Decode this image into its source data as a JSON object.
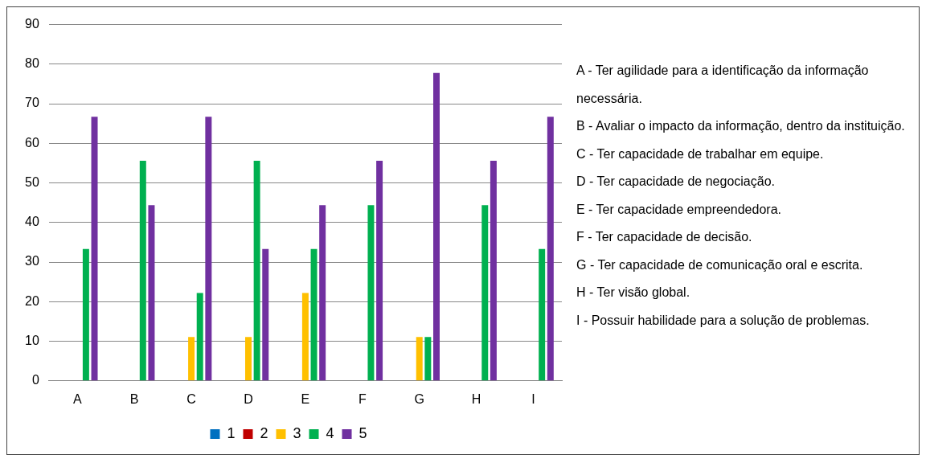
{
  "chart_data": {
    "type": "bar",
    "categories": [
      "A",
      "B",
      "C",
      "D",
      "E",
      "F",
      "G",
      "H",
      "I"
    ],
    "series": [
      {
        "name": "1",
        "color": "#0070c0",
        "values": [
          0,
          0,
          0,
          0,
          0,
          0,
          0,
          0,
          0
        ]
      },
      {
        "name": "2",
        "color": "#c00000",
        "values": [
          0,
          0,
          0,
          0,
          0,
          0,
          0,
          0,
          0
        ]
      },
      {
        "name": "3",
        "color": "#ffc000",
        "values": [
          0,
          0,
          11.1,
          11.1,
          22.2,
          0,
          11.1,
          0,
          0
        ]
      },
      {
        "name": "4",
        "color": "#00b050",
        "values": [
          33.3,
          55.6,
          22.2,
          55.6,
          33.3,
          44.4,
          11.1,
          44.4,
          33.3
        ]
      },
      {
        "name": "5",
        "color": "#7030a0",
        "values": [
          66.7,
          44.4,
          66.7,
          33.3,
          44.4,
          55.6,
          77.8,
          55.6,
          66.7
        ]
      }
    ],
    "ylim": [
      0,
      90
    ],
    "yticks": [
      0,
      10,
      20,
      30,
      40,
      50,
      60,
      70,
      80,
      90
    ],
    "grid": "y",
    "legend": "bottom",
    "annotations": [
      "A - Ter agilidade para a identificação da informação necessária.",
      "B - Avaliar o impacto da informação, dentro da instituição.",
      "C - Ter capacidade de trabalhar em equipe.",
      "D - Ter capacidade de negociação.",
      "E - Ter capacidade empreendedora.",
      "F - Ter capacidade de decisão.",
      "G - Ter capacidade de comunicação oral e escrita.",
      "H - Ter visão global.",
      "I - Possuir habilidade para a solução de problemas."
    ]
  }
}
